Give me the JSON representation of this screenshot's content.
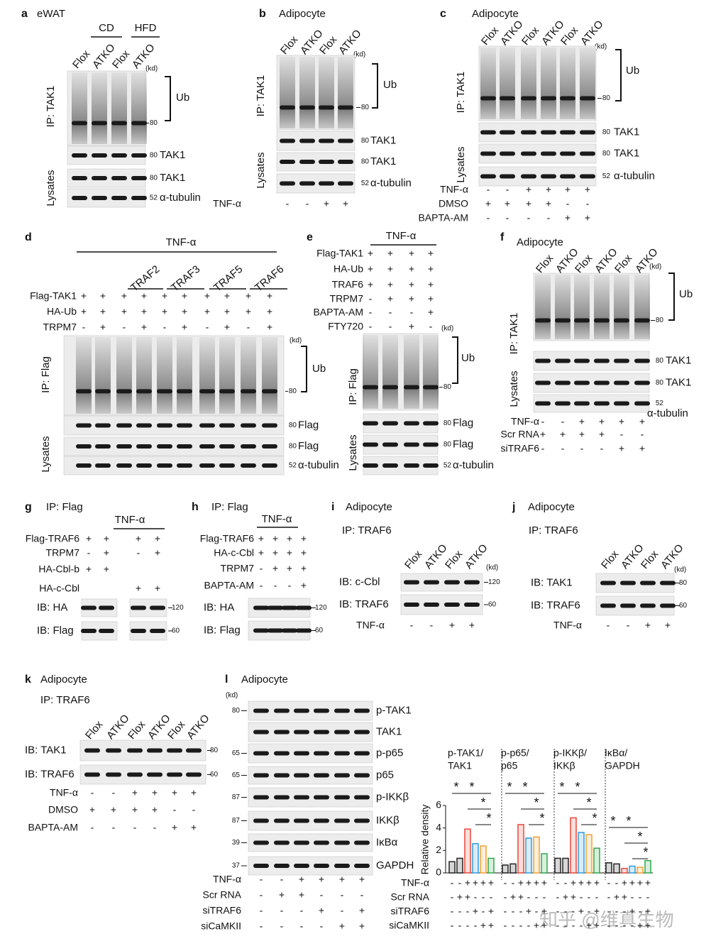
{
  "panels": [
    {
      "letter": "a",
      "title": "eWAT",
      "groups": [
        "CD",
        "HFD"
      ],
      "lanes": [
        "Flox",
        "ATKO",
        "Flox",
        "ATKO"
      ],
      "kd": "(kd)",
      "ip": "IP: TAK1",
      "lysates": "Lysates",
      "ub": "Ub",
      "blots": [
        {
          "marker": 80
        },
        {
          "label": "TAK1",
          "marker": 80
        },
        {
          "label": "TAK1",
          "marker": 80
        },
        {
          "label": "α-tubulin",
          "marker": 52
        }
      ]
    },
    {
      "letter": "b",
      "title": "Adipocyte",
      "lanes": [
        "Flox",
        "ATKO",
        "Flox",
        "ATKO"
      ],
      "kd": "(kd)",
      "ip": "IP: TAK1",
      "lysates": "Lysates",
      "ub": "Ub",
      "blots": [
        {
          "marker": 80
        },
        {
          "label": "TAK1",
          "marker": 80
        },
        {
          "label": "TAK1",
          "marker": 80
        },
        {
          "label": "α-tubulin",
          "marker": 52
        }
      ],
      "conditions": [
        {
          "label": "TNF-α",
          "signs": [
            "-",
            "-",
            "+",
            "+"
          ]
        }
      ]
    },
    {
      "letter": "c",
      "title": "Adipocyte",
      "lanes": [
        "Flox",
        "ATKO",
        "Flox",
        "ATKO",
        "Flox",
        "ATKO"
      ],
      "kd": "(kd)",
      "ip": "IP: TAK1",
      "lysates": "Lysates",
      "ub": "Ub",
      "blots": [
        {
          "marker": 80
        },
        {
          "label": "TAK1",
          "marker": 80
        },
        {
          "label": "TAK1",
          "marker": 80
        },
        {
          "label": "α-tubulin",
          "marker": 52
        }
      ],
      "conditions": [
        {
          "label": "TNF-α",
          "signs": [
            "-",
            "-",
            "+",
            "+",
            "+",
            "+"
          ]
        },
        {
          "label": "DMSO",
          "signs": [
            "+",
            "+",
            "+",
            "+",
            "-",
            "-"
          ]
        },
        {
          "label": "BAPTA-AM",
          "signs": [
            "-",
            "-",
            "-",
            "-",
            "+",
            "+"
          ]
        }
      ]
    },
    {
      "letter": "d",
      "header": "TNF-α",
      "groups": [
        "TRAF2",
        "TRAF3",
        "TRAF5",
        "TRAF6"
      ],
      "kd": "(kd)",
      "ip": "IP: Flag",
      "lysates": "Lysates",
      "ub": "Ub",
      "blots": [
        {
          "marker": 80
        },
        {
          "label": "Flag",
          "marker": 80
        },
        {
          "label": "Flag",
          "marker": 80
        },
        {
          "label": "α-tubulin",
          "marker": 52
        }
      ],
      "conditions": [
        {
          "label": "Flag-TAK1",
          "signs": [
            "+",
            "+",
            "+",
            "+",
            "+",
            "+",
            "+",
            "+",
            "+",
            "+"
          ]
        },
        {
          "label": "HA-Ub",
          "signs": [
            "+",
            "+",
            "+",
            "+",
            "+",
            "+",
            "+",
            "+",
            "+",
            "+"
          ]
        },
        {
          "label": "TRPM7",
          "signs": [
            "-",
            "+",
            "-",
            "+",
            "-",
            "+",
            "-",
            "+",
            "-",
            "+"
          ]
        }
      ]
    },
    {
      "letter": "e",
      "header": "TNF-α",
      "kd": "(kd)",
      "ip": "IP: Flag",
      "lysates": "Lysates",
      "ub": "Ub",
      "blots": [
        {
          "marker": 80
        },
        {
          "label": "Flag",
          "marker": 80
        },
        {
          "label": "Flag",
          "marker": 80
        },
        {
          "label": "α-tubulin",
          "marker": 52
        }
      ],
      "conditions": [
        {
          "label": "Flag-TAK1",
          "signs": [
            "+",
            "+",
            "+",
            "+"
          ]
        },
        {
          "label": "HA-Ub",
          "signs": [
            "+",
            "+",
            "+",
            "+"
          ]
        },
        {
          "label": "TRAF6",
          "signs": [
            "+",
            "+",
            "+",
            "+"
          ]
        },
        {
          "label": "TRPM7",
          "signs": [
            "-",
            "+",
            "+",
            "+"
          ]
        },
        {
          "label": "BAPTA-AM",
          "signs": [
            "-",
            "-",
            "-",
            "+"
          ]
        },
        {
          "label": "FTY720",
          "signs": [
            "-",
            "-",
            "+",
            "-"
          ]
        }
      ]
    },
    {
      "letter": "f",
      "title": "Adipocyte",
      "lanes": [
        "Flox",
        "ATKO",
        "Flox",
        "ATKO",
        "Flox",
        "ATKO"
      ],
      "kd": "(kd)",
      "ip": "IP: TAK1",
      "lysates": "Lysates",
      "ub": "Ub",
      "blots": [
        {
          "marker": 80
        },
        {
          "label": "TAK1",
          "marker": 80
        },
        {
          "label": "TAK1",
          "marker": 80
        },
        {
          "label": "α-tubulin",
          "marker": 52
        }
      ],
      "conditions": [
        {
          "label": "TNF-α",
          "signs": [
            "-",
            "-",
            "+",
            "+",
            "+",
            "+"
          ]
        },
        {
          "label": "Scr RNA",
          "signs": [
            "+",
            "+",
            "+",
            "+",
            "-",
            "-"
          ]
        },
        {
          "label": "siTRAF6",
          "signs": [
            "-",
            "-",
            "-",
            "-",
            "+",
            "+"
          ]
        }
      ]
    },
    {
      "letter": "g",
      "ip": "IP: Flag",
      "header": "TNF-α",
      "blots": [
        {
          "label": "IB: HA",
          "marker": 120
        },
        {
          "label": "IB: Flag",
          "marker": 60
        }
      ],
      "conditions": [
        {
          "label": "Flag-TRAF6",
          "signs": [
            "+",
            "+",
            "+",
            "+"
          ]
        },
        {
          "label": "TRPM7",
          "signs": [
            "-",
            "+",
            "-",
            "+"
          ]
        },
        {
          "label": "HA-Cbl-b",
          "signs": [
            "+",
            "+",
            null,
            null
          ]
        },
        {
          "label": "HA-c-Cbl",
          "signs": [
            null,
            null,
            "+",
            "+"
          ]
        }
      ]
    },
    {
      "letter": "h",
      "ip": "IP: Flag",
      "header": "TNF-α",
      "blots": [
        {
          "label": "IB: HA",
          "marker": 120
        },
        {
          "label": "IB: Flag",
          "marker": 60
        }
      ],
      "conditions": [
        {
          "label": "Flag-TRAF6",
          "signs": [
            "+",
            "+",
            "+",
            "+"
          ]
        },
        {
          "label": "HA-c-Cbl",
          "signs": [
            "+",
            "+",
            "+",
            "+"
          ]
        },
        {
          "label": "TRPM7",
          "signs": [
            "-",
            "+",
            "+",
            "+"
          ]
        },
        {
          "label": "BAPTA-AM",
          "signs": [
            "-",
            "-",
            "-",
            "+"
          ]
        }
      ]
    },
    {
      "letter": "i",
      "title": "Adipocyte",
      "ip": "IP: TRAF6",
      "lanes": [
        "Flox",
        "ATKO",
        "Flox",
        "ATKO"
      ],
      "kd": "(kd)",
      "blots": [
        {
          "label": "IB: c-Cbl",
          "marker": 120
        },
        {
          "label": "IB: TRAF6",
          "marker": 60
        }
      ],
      "conditions": [
        {
          "label": "TNF-α",
          "signs": [
            "-",
            "-",
            "+",
            "+"
          ]
        }
      ]
    },
    {
      "letter": "j",
      "title": "Adipocyte",
      "ip": "IP: TRAF6",
      "lanes": [
        "Flox",
        "ATKO",
        "Flox",
        "ATKO"
      ],
      "kd": "(kd)",
      "blots": [
        {
          "label": "IB: TAK1",
          "marker": 80
        },
        {
          "label": "IB: TRAF6",
          "marker": 60
        }
      ],
      "conditions": [
        {
          "label": "TNF-α",
          "signs": [
            "-",
            "-",
            "+",
            "+"
          ]
        }
      ]
    },
    {
      "letter": "k",
      "title": "Adipocyte",
      "ip": "IP: TRAF6",
      "lanes": [
        "Flox",
        "ATKO",
        "Flox",
        "ATKO",
        "Flox",
        "ATKO"
      ],
      "blots": [
        {
          "label": "IB: TAK1",
          "marker": 80
        },
        {
          "label": "IB: TRAF6",
          "marker": 60
        }
      ],
      "conditions": [
        {
          "label": "TNF-α",
          "signs": [
            "-",
            "-",
            "+",
            "+",
            "+",
            "+"
          ]
        },
        {
          "label": "DMSO",
          "signs": [
            "+",
            "+",
            "+",
            "+",
            "-",
            "-"
          ]
        },
        {
          "label": "BAPTA-AM",
          "signs": [
            "-",
            "-",
            "-",
            "-",
            "+",
            "+"
          ]
        }
      ]
    },
    {
      "letter": "l",
      "title": "Adipocyte",
      "kd": "(kd)",
      "blots": [
        {
          "label": "p-TAK1",
          "marker": 80
        },
        {
          "label": "TAK1"
        },
        {
          "label": "p-p65",
          "marker": 65
        },
        {
          "label": "p65",
          "marker": 65
        },
        {
          "label": "p-IKKβ",
          "marker": 87
        },
        {
          "label": "IKKβ",
          "marker": 87
        },
        {
          "label": "IκBα",
          "marker": 39
        },
        {
          "label": "GAPDH",
          "marker": 37
        }
      ],
      "conditions": [
        {
          "label": "TNF-α",
          "signs": [
            "-",
            "-",
            "+",
            "+",
            "+",
            "+"
          ]
        },
        {
          "label": "Scr RNA",
          "signs": [
            "-",
            "+",
            "+",
            "-",
            "-",
            "-"
          ]
        },
        {
          "label": "siTRAF6",
          "signs": [
            "-",
            "-",
            "-",
            "+",
            "-",
            "+"
          ]
        },
        {
          "label": "siCaMKII",
          "signs": [
            "-",
            "-",
            "-",
            "-",
            "+",
            "+"
          ]
        }
      ]
    }
  ],
  "chart_data": {
    "type": "bar",
    "ylabel": "Relative density",
    "ylim": [
      0,
      6
    ],
    "yticks": [
      0,
      2,
      4,
      6
    ],
    "categories": [
      [
        "p-TAK1/",
        "TAK1"
      ],
      [
        "p-p65/",
        "p65"
      ],
      [
        "p-IKKβ/",
        "IKKβ"
      ],
      [
        "IκBα/",
        "GAPDH"
      ]
    ],
    "series": [
      {
        "color": "#222222",
        "values": [
          1.0,
          0.7,
          1.3,
          0.9
        ]
      },
      {
        "color": "#222222",
        "values": [
          1.3,
          0.8,
          1.3,
          0.8
        ]
      },
      {
        "color": "#e8473a",
        "values": [
          3.9,
          4.3,
          4.9,
          0.4
        ]
      },
      {
        "color": "#2f9be0",
        "values": [
          2.6,
          3.1,
          3.6,
          0.6
        ]
      },
      {
        "color": "#f2a12e",
        "values": [
          2.4,
          3.2,
          3.4,
          0.5
        ]
      },
      {
        "color": "#2ea84a",
        "values": [
          1.3,
          1.7,
          2.2,
          1.1
        ]
      }
    ],
    "annotations": [
      [
        "*",
        "*",
        "*",
        "*"
      ],
      [
        "*",
        "*",
        "*",
        "*"
      ],
      [
        "*",
        "*",
        "*",
        "*"
      ],
      [
        "*",
        "*",
        "*",
        "*"
      ]
    ],
    "conditions": [
      {
        "label": "TNF-α",
        "signs": [
          "-",
          "-",
          "+",
          "+",
          "+",
          "+",
          "-",
          "-",
          "+",
          "+",
          "+",
          "+",
          "-",
          "-",
          "+",
          "+",
          "+",
          "+",
          "-",
          "-",
          "+",
          "+",
          "+",
          "+"
        ]
      },
      {
        "label": "Scr RNA",
        "signs": [
          "-",
          "+",
          "+",
          "-",
          "-",
          "-",
          "-",
          "+",
          "+",
          "-",
          "-",
          "-",
          "-",
          "+",
          "+",
          "-",
          "-",
          "-",
          "-",
          "+",
          "+",
          "-",
          "-",
          "-"
        ]
      },
      {
        "label": "siTRAF6",
        "signs": [
          "-",
          "-",
          "-",
          "+",
          "-",
          "+",
          "-",
          "-",
          "-",
          "+",
          "-",
          "+",
          "-",
          "-",
          "-",
          "+",
          "-",
          "+",
          "-",
          "-",
          "-",
          "+",
          "-",
          "+"
        ]
      },
      {
        "label": "siCaMKII",
        "signs": [
          "-",
          "-",
          "-",
          "-",
          "+",
          "+",
          "-",
          "-",
          "-",
          "-",
          "+",
          "+",
          "-",
          "-",
          "-",
          "-",
          "+",
          "+",
          "-",
          "-",
          "-",
          "-",
          "+",
          "+"
        ]
      }
    ]
  },
  "watermark": "知乎 @维真生物"
}
